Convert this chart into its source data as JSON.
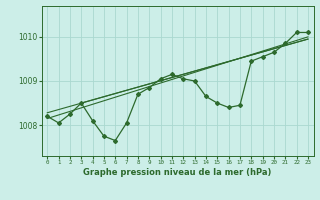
{
  "title": "Graphe pression niveau de la mer (hPa)",
  "bg_color": "#cceee8",
  "line_color": "#2d6a2d",
  "grid_color": "#aad8d0",
  "x_ticks": [
    0,
    1,
    2,
    3,
    4,
    5,
    6,
    7,
    8,
    9,
    10,
    11,
    12,
    13,
    14,
    15,
    16,
    17,
    18,
    19,
    20,
    21,
    22,
    23
  ],
  "y_ticks": [
    1008,
    1009,
    1010
  ],
  "ylim": [
    1007.3,
    1010.7
  ],
  "xlim": [
    -0.5,
    23.5
  ],
  "main_series": [
    1008.2,
    1008.05,
    1008.25,
    1008.5,
    1008.1,
    1007.75,
    1007.65,
    1008.05,
    1008.7,
    1008.85,
    1009.05,
    1009.15,
    1009.05,
    1009.0,
    1008.65,
    1008.5,
    1008.4,
    1008.45,
    1009.45,
    1009.55,
    1009.65,
    1009.85,
    1010.1,
    1010.1
  ],
  "trend1_x": [
    0,
    23
  ],
  "trend1_y": [
    1008.15,
    1010.0
  ],
  "trend2_x": [
    0,
    23
  ],
  "trend2_y": [
    1008.28,
    1009.95
  ],
  "trend3_x": [
    3,
    23
  ],
  "trend3_y": [
    1008.5,
    1009.95
  ]
}
